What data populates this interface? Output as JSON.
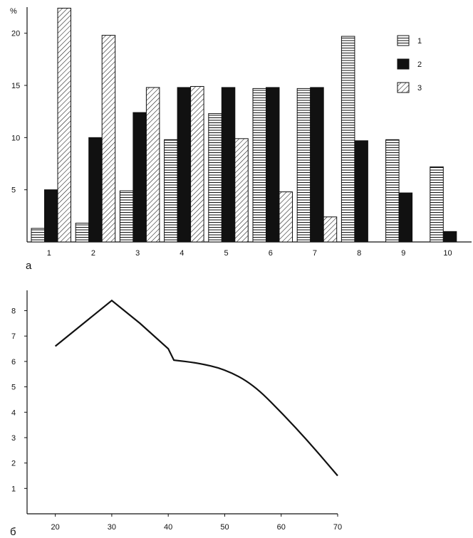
{
  "chart_data": [
    {
      "type": "bar",
      "panel_label": "а",
      "y_unit": "%",
      "categories": [
        "1",
        "2",
        "3",
        "4",
        "5",
        "6",
        "7",
        "8",
        "9",
        "10"
      ],
      "ylim": [
        0,
        22.5
      ],
      "yticks": [
        5,
        10,
        15,
        20
      ],
      "grid": false,
      "legend_position": "top-right",
      "series": [
        {
          "name": "1",
          "pattern": "horizontal",
          "values": [
            1.3,
            1.8,
            4.9,
            9.8,
            12.3,
            14.7,
            14.7,
            19.7,
            9.8,
            7.2
          ]
        },
        {
          "name": "2",
          "pattern": "solid",
          "values": [
            5.0,
            10.0,
            12.4,
            14.8,
            14.8,
            14.8,
            14.8,
            9.7,
            4.7,
            1.0
          ]
        },
        {
          "name": "3",
          "pattern": "diagonal",
          "values": [
            22.4,
            19.8,
            14.8,
            14.9,
            9.9,
            4.8,
            2.4,
            null,
            null,
            null
          ]
        }
      ]
    },
    {
      "type": "line",
      "panel_label": "б",
      "x": [
        20,
        30,
        35,
        40,
        41,
        45,
        50,
        55,
        60,
        65,
        70
      ],
      "y": [
        6.6,
        8.4,
        7.5,
        6.5,
        6.05,
        5.95,
        5.7,
        5.1,
        4.0,
        2.8,
        1.5
      ],
      "xticks": [
        20,
        30,
        40,
        50,
        60,
        70
      ],
      "yticks": [
        1,
        2,
        3,
        4,
        5,
        6,
        7,
        8
      ],
      "xlim": [
        15,
        70
      ],
      "ylim": [
        0,
        8.8
      ],
      "grid": false
    }
  ]
}
